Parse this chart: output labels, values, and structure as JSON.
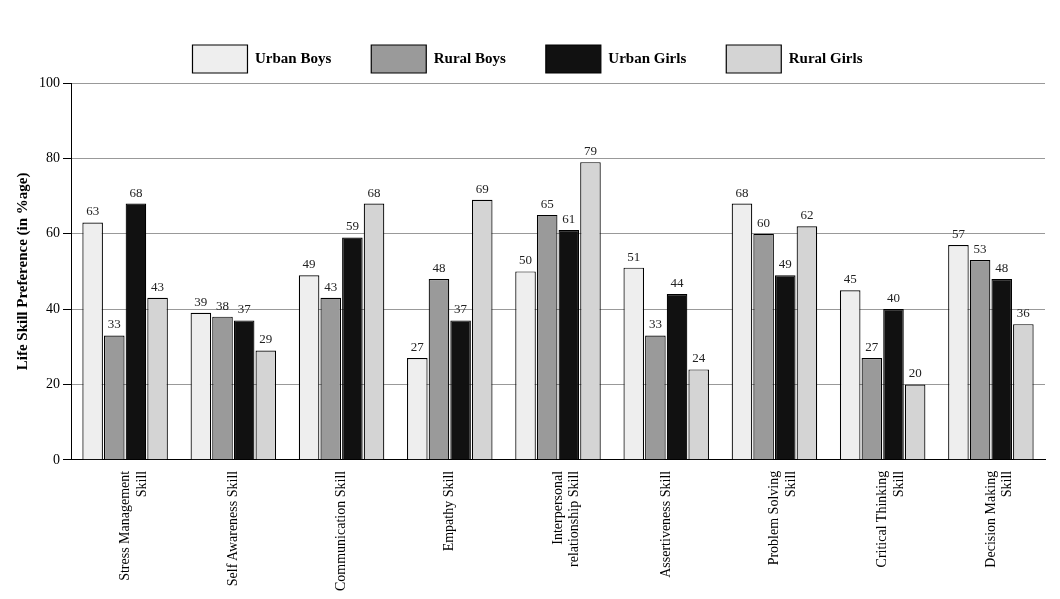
{
  "chart_data": {
    "type": "bar",
    "ylabel": "Life Skill Preference (in %age)",
    "categories": [
      "Stress Management Skill",
      "Self Awareness Skill",
      "Communication Skill",
      "Empathy Skill",
      "Interpersonal relationship Skill",
      "Assertiveness Skill",
      "Problem Solving Skill",
      "Critical Thinking Skill",
      "Decision Making Skill"
    ],
    "series": [
      {
        "name": "Urban Boys",
        "color": "#eeeeee",
        "values": [
          63,
          39,
          49,
          27,
          50,
          51,
          68,
          45,
          57
        ]
      },
      {
        "name": "Rural Boys",
        "color": "#9a9a9a",
        "values": [
          33,
          38,
          43,
          48,
          65,
          33,
          60,
          27,
          53
        ]
      },
      {
        "name": "Urban Girls",
        "color": "#111111",
        "values": [
          68,
          37,
          59,
          37,
          61,
          44,
          49,
          40,
          48
        ]
      },
      {
        "name": "Rural Girls",
        "color": "#d4d4d4",
        "values": [
          43,
          29,
          68,
          69,
          79,
          24,
          62,
          20,
          36
        ]
      }
    ],
    "ylim": [
      0,
      100
    ],
    "yticks": [
      0,
      20,
      40,
      60,
      80,
      100
    ],
    "grid": "y",
    "legend": "top",
    "data_labels": true
  }
}
